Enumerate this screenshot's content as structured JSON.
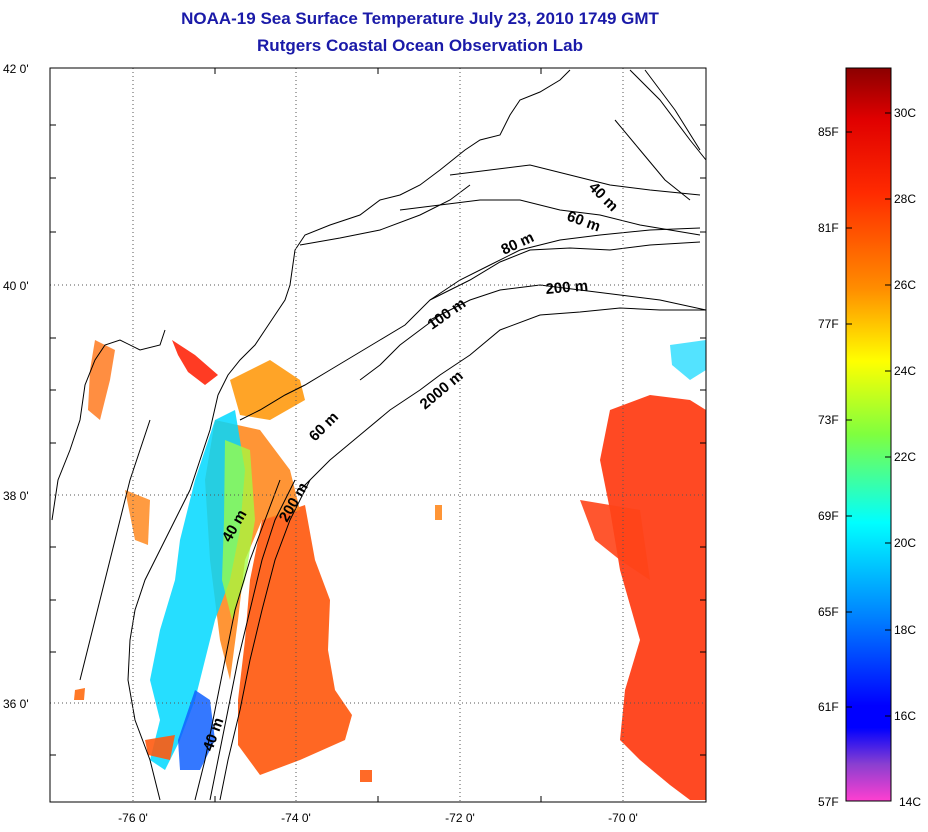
{
  "title_line1": "NOAA-19 Sea Surface Temperature July 23, 2010 1749 GMT",
  "title_line2": "Rutgers Coastal Ocean Observation Lab",
  "map": {
    "lat_ticks": [
      "42 0'",
      "40 0'",
      "38 0'",
      "36 0'"
    ],
    "lon_ticks": [
      "-76 0'",
      "-74 0'",
      "-72 0'",
      "-70 0'"
    ],
    "isobaths": [
      "40 m",
      "60 m",
      "80 m",
      "200 m",
      "100 m",
      "2000 m",
      "60 m",
      "40 m",
      "200 m",
      "40 m"
    ]
  },
  "colorbar": {
    "fahrenheit": [
      "85F",
      "81F",
      "77F",
      "73F",
      "69F",
      "65F",
      "61F",
      "57F"
    ],
    "celsius": [
      "30C",
      "28C",
      "26C",
      "24C",
      "22C",
      "20C",
      "18C",
      "16C",
      "14C"
    ],
    "colors": [
      "#8b0000",
      "#ff0000",
      "#ff7a00",
      "#ffff00",
      "#7fff3f",
      "#00ffff",
      "#0060ff",
      "#0000ff",
      "#8a3fd0",
      "#ff3fd0"
    ]
  }
}
